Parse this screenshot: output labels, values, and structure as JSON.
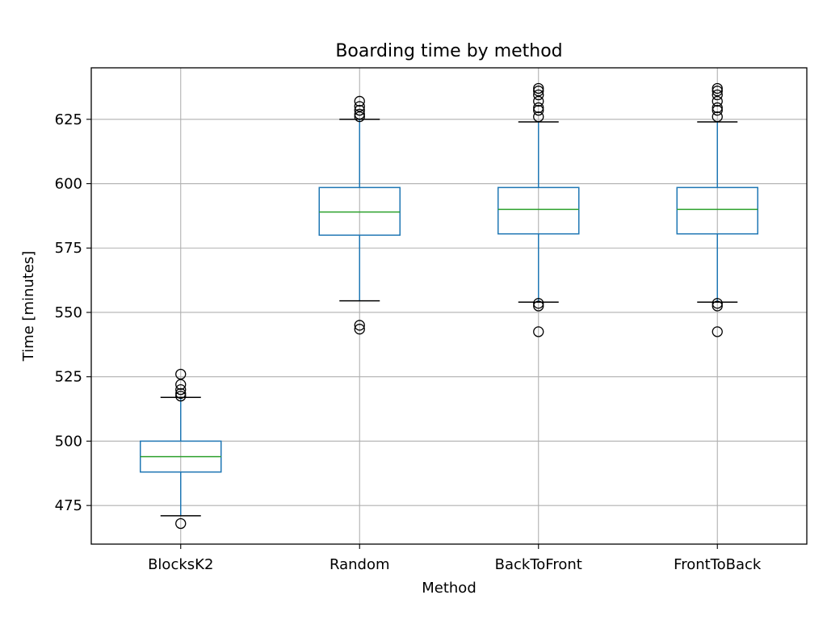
{
  "chart_data": {
    "type": "box",
    "title": "Boarding time by method",
    "xlabel": "Method",
    "ylabel": "Time [minutes]",
    "ylim": [
      460,
      645
    ],
    "yticks": [
      475,
      500,
      525,
      550,
      575,
      600,
      625
    ],
    "grid": true,
    "categories": [
      "BlocksK2",
      "Random",
      "BackToFront",
      "FrontToBack"
    ],
    "boxes": [
      {
        "category": "BlocksK2",
        "whisker_low": 471,
        "q1": 488,
        "median": 494,
        "q3": 500,
        "whisker_high": 517,
        "outliers": [
          468,
          517.5,
          518.5,
          520,
          522,
          526
        ]
      },
      {
        "category": "Random",
        "whisker_low": 554.5,
        "q1": 580,
        "median": 589,
        "q3": 598.5,
        "whisker_high": 625,
        "outliers": [
          543.5,
          545,
          626,
          627,
          628.5,
          630,
          632
        ]
      },
      {
        "category": "BackToFront",
        "whisker_low": 554,
        "q1": 580.5,
        "median": 590,
        "q3": 598.5,
        "whisker_high": 624,
        "outliers": [
          542.5,
          552.5,
          553.5,
          626,
          628.5,
          629.5,
          632,
          634.5,
          636,
          637
        ]
      },
      {
        "category": "FrontToBack",
        "whisker_low": 554,
        "q1": 580.5,
        "median": 590,
        "q3": 598.5,
        "whisker_high": 624,
        "outliers": [
          542.5,
          552.5,
          553.5,
          626,
          628.5,
          629.5,
          632,
          634.5,
          636,
          637
        ]
      }
    ],
    "colors": {
      "box": "#1f77b4",
      "whisker": "#1f77b4",
      "median": "#2ca02c",
      "cap": "#000000",
      "flier": "#000000",
      "grid": "#b0b0b0"
    }
  }
}
